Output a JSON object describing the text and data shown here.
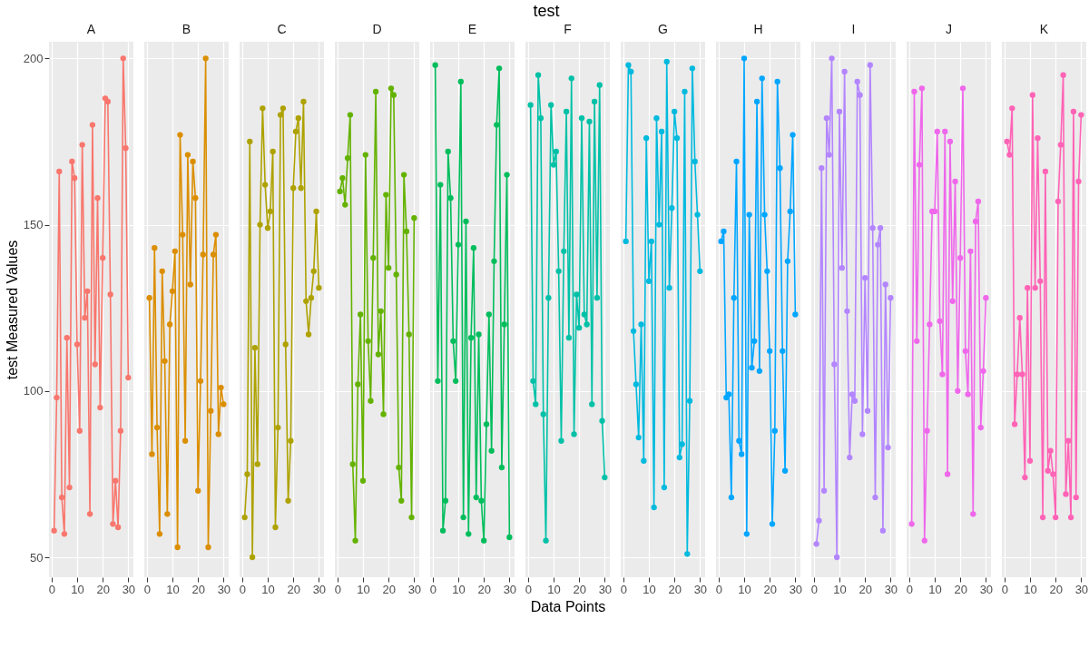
{
  "chart_data": [
    {
      "type": "line",
      "title": "A",
      "ylabel": "test Measured Values",
      "marker": "circle",
      "grid": true,
      "xlim": [
        -1,
        32
      ],
      "ylim": [
        44,
        205
      ],
      "xticks": [
        0,
        10,
        20,
        30
      ],
      "yticks": [
        50,
        100,
        150,
        200
      ],
      "x": [
        1,
        2,
        3,
        4,
        5,
        6,
        7,
        8,
        9,
        10,
        11,
        12,
        13,
        14,
        15,
        16,
        17,
        18,
        19,
        20,
        21,
        22,
        23,
        24,
        25,
        26,
        27,
        28,
        29,
        30
      ],
      "series": [
        {
          "color": "#f8766d",
          "values": [
            58,
            98,
            166,
            68,
            57,
            116,
            71,
            169,
            164,
            114,
            88,
            174,
            122,
            130,
            63,
            180,
            108,
            158,
            95,
            140,
            188,
            187,
            129,
            60,
            73,
            59,
            88,
            200,
            173,
            104
          ]
        }
      ]
    },
    {
      "type": "line",
      "title": "B",
      "tick_labels": "x",
      "marker": "circle",
      "grid": true,
      "xlim": [
        -1,
        32
      ],
      "ylim": [
        44,
        205
      ],
      "xticks": [
        0,
        10,
        20,
        30
      ],
      "yticks": [
        50,
        100,
        150,
        200
      ],
      "x": [
        1,
        2,
        3,
        4,
        5,
        6,
        7,
        8,
        9,
        10,
        11,
        12,
        13,
        14,
        15,
        16,
        17,
        18,
        19,
        20,
        21,
        22,
        23,
        24,
        25,
        26,
        27,
        28,
        29,
        30
      ],
      "series": [
        {
          "color": "#db8e00",
          "values": [
            128,
            81,
            143,
            89,
            57,
            136,
            109,
            63,
            120,
            130,
            142,
            53,
            177,
            147,
            85,
            171,
            132,
            169,
            158,
            70,
            103,
            141,
            200,
            53,
            94,
            141,
            147,
            87,
            101,
            96
          ]
        }
      ]
    },
    {
      "type": "line",
      "title": "C",
      "tick_labels": "x",
      "marker": "circle",
      "grid": true,
      "xlim": [
        -1,
        32
      ],
      "ylim": [
        44,
        205
      ],
      "xticks": [
        0,
        10,
        20,
        30
      ],
      "yticks": [
        50,
        100,
        150,
        200
      ],
      "x": [
        1,
        2,
        3,
        4,
        5,
        6,
        7,
        8,
        9,
        10,
        11,
        12,
        13,
        14,
        15,
        16,
        17,
        18,
        19,
        20,
        21,
        22,
        23,
        24,
        25,
        26,
        27,
        28,
        29,
        30
      ],
      "series": [
        {
          "color": "#aea200",
          "values": [
            62,
            75,
            175,
            50,
            113,
            78,
            150,
            185,
            162,
            149,
            154,
            172,
            59,
            89,
            183,
            185,
            114,
            67,
            85,
            161,
            178,
            182,
            161,
            187,
            127,
            117,
            128,
            136,
            154,
            131
          ]
        }
      ]
    },
    {
      "type": "line",
      "title": "D",
      "tick_labels": "x",
      "marker": "circle",
      "grid": true,
      "xlim": [
        -1,
        32
      ],
      "ylim": [
        44,
        205
      ],
      "xticks": [
        0,
        10,
        20,
        30
      ],
      "yticks": [
        50,
        100,
        150,
        200
      ],
      "x": [
        1,
        2,
        3,
        4,
        5,
        6,
        7,
        8,
        9,
        10,
        11,
        12,
        13,
        14,
        15,
        16,
        17,
        18,
        19,
        20,
        21,
        22,
        23,
        24,
        25,
        26,
        27,
        28,
        29,
        30
      ],
      "series": [
        {
          "color": "#64b200",
          "values": [
            160,
            164,
            156,
            170,
            183,
            78,
            55,
            102,
            123,
            73,
            171,
            115,
            97,
            140,
            190,
            111,
            124,
            93,
            159,
            137,
            191,
            189,
            135,
            77,
            67,
            165,
            148,
            117,
            62,
            152
          ]
        }
      ]
    },
    {
      "type": "line",
      "title": "E",
      "tick_labels": "x",
      "marker": "circle",
      "grid": true,
      "xlim": [
        -1,
        32
      ],
      "ylim": [
        44,
        205
      ],
      "xticks": [
        0,
        10,
        20,
        30
      ],
      "yticks": [
        50,
        100,
        150,
        200
      ],
      "x": [
        1,
        2,
        3,
        4,
        5,
        6,
        7,
        8,
        9,
        10,
        11,
        12,
        13,
        14,
        15,
        16,
        17,
        18,
        19,
        20,
        21,
        22,
        23,
        24,
        25,
        26,
        27,
        28,
        29,
        30
      ],
      "series": [
        {
          "color": "#00bd5c",
          "values": [
            198,
            103,
            162,
            58,
            67,
            172,
            158,
            115,
            103,
            144,
            193,
            62,
            151,
            57,
            116,
            143,
            68,
            117,
            67,
            55,
            90,
            123,
            82,
            139,
            180,
            197,
            77,
            120,
            165,
            56
          ]
        }
      ]
    },
    {
      "type": "line",
      "title": "F",
      "xlabel": "Data Points",
      "annotations": [
        "test"
      ],
      "tick_labels": "x",
      "marker": "circle",
      "grid": true,
      "xlim": [
        -1,
        32
      ],
      "ylim": [
        44,
        205
      ],
      "xticks": [
        0,
        10,
        20,
        30
      ],
      "yticks": [
        50,
        100,
        150,
        200
      ],
      "x": [
        1,
        2,
        3,
        4,
        5,
        6,
        7,
        8,
        9,
        10,
        11,
        12,
        13,
        14,
        15,
        16,
        17,
        18,
        19,
        20,
        21,
        22,
        23,
        24,
        25,
        26,
        27,
        28,
        29,
        30
      ],
      "series": [
        {
          "color": "#00c1a7",
          "values": [
            186,
            103,
            96,
            195,
            182,
            93,
            55,
            128,
            186,
            168,
            172,
            136,
            85,
            142,
            184,
            116,
            194,
            87,
            129,
            119,
            182,
            123,
            120,
            181,
            96,
            187,
            128,
            192,
            91,
            74
          ]
        }
      ]
    },
    {
      "type": "line",
      "title": "G",
      "tick_labels": "x",
      "marker": "circle",
      "grid": true,
      "xlim": [
        -1,
        32
      ],
      "ylim": [
        44,
        205
      ],
      "xticks": [
        0,
        10,
        20,
        30
      ],
      "yticks": [
        50,
        100,
        150,
        200
      ],
      "x": [
        1,
        2,
        3,
        4,
        5,
        6,
        7,
        8,
        9,
        10,
        11,
        12,
        13,
        14,
        15,
        16,
        17,
        18,
        19,
        20,
        21,
        22,
        23,
        24,
        25,
        26,
        27,
        28,
        29,
        30
      ],
      "series": [
        {
          "color": "#00bade",
          "values": [
            145,
            198,
            196,
            118,
            102,
            86,
            120,
            79,
            176,
            133,
            145,
            65,
            182,
            150,
            178,
            71,
            199,
            131,
            155,
            184,
            176,
            80,
            84,
            190,
            51,
            97,
            197,
            169,
            153,
            136
          ]
        }
      ]
    },
    {
      "type": "line",
      "title": "H",
      "tick_labels": "x",
      "marker": "circle",
      "grid": true,
      "xlim": [
        -1,
        32
      ],
      "ylim": [
        44,
        205
      ],
      "xticks": [
        0,
        10,
        20,
        30
      ],
      "yticks": [
        50,
        100,
        150,
        200
      ],
      "x": [
        1,
        2,
        3,
        4,
        5,
        6,
        7,
        8,
        9,
        10,
        11,
        12,
        13,
        14,
        15,
        16,
        17,
        18,
        19,
        20,
        21,
        22,
        23,
        24,
        25,
        26,
        27,
        28,
        29,
        30
      ],
      "series": [
        {
          "color": "#00a6ff",
          "values": [
            145,
            148,
            98,
            99,
            68,
            128,
            169,
            85,
            81,
            200,
            57,
            153,
            107,
            115,
            187,
            106,
            194,
            153,
            136,
            112,
            60,
            88,
            193,
            167,
            112,
            76,
            139,
            154,
            177,
            123
          ]
        }
      ]
    },
    {
      "type": "line",
      "title": "I",
      "tick_labels": "x",
      "marker": "circle",
      "grid": true,
      "xlim": [
        -1,
        32
      ],
      "ylim": [
        44,
        205
      ],
      "xticks": [
        0,
        10,
        20,
        30
      ],
      "yticks": [
        50,
        100,
        150,
        200
      ],
      "x": [
        1,
        2,
        3,
        4,
        5,
        6,
        7,
        8,
        9,
        10,
        11,
        12,
        13,
        14,
        15,
        16,
        17,
        18,
        19,
        20,
        21,
        22,
        23,
        24,
        25,
        26,
        27,
        28,
        29,
        30
      ],
      "series": [
        {
          "color": "#b385ff",
          "values": [
            54,
            61,
            167,
            70,
            182,
            171,
            200,
            108,
            50,
            184,
            137,
            196,
            124,
            80,
            99,
            97,
            193,
            189,
            87,
            134,
            94,
            198,
            149,
            68,
            144,
            149,
            58,
            132,
            83,
            128
          ]
        }
      ]
    },
    {
      "type": "line",
      "title": "J",
      "tick_labels": "x",
      "marker": "circle",
      "grid": true,
      "xlim": [
        -1,
        32
      ],
      "ylim": [
        44,
        205
      ],
      "xticks": [
        0,
        10,
        20,
        30
      ],
      "yticks": [
        50,
        100,
        150,
        200
      ],
      "x": [
        1,
        2,
        3,
        4,
        5,
        6,
        7,
        8,
        9,
        10,
        11,
        12,
        13,
        14,
        15,
        16,
        17,
        18,
        19,
        20,
        21,
        22,
        23,
        24,
        25,
        26,
        27,
        28,
        29,
        30
      ],
      "series": [
        {
          "color": "#ef67eb",
          "values": [
            60,
            190,
            115,
            168,
            191,
            55,
            88,
            120,
            154,
            154,
            178,
            121,
            105,
            178,
            75,
            175,
            127,
            163,
            100,
            140,
            191,
            112,
            99,
            142,
            63,
            151,
            157,
            89,
            106,
            128
          ]
        }
      ]
    },
    {
      "type": "line",
      "title": "K",
      "tick_labels": "x",
      "marker": "circle",
      "grid": true,
      "xlim": [
        -1,
        32
      ],
      "ylim": [
        44,
        205
      ],
      "xticks": [
        0,
        10,
        20,
        30
      ],
      "yticks": [
        50,
        100,
        150,
        200
      ],
      "x": [
        1,
        2,
        3,
        4,
        5,
        6,
        7,
        8,
        9,
        10,
        11,
        12,
        13,
        14,
        15,
        16,
        17,
        18,
        19,
        20,
        21,
        22,
        23,
        24,
        25,
        26,
        27,
        28,
        29,
        30
      ],
      "series": [
        {
          "color": "#ff63b6",
          "values": [
            175,
            171,
            185,
            90,
            105,
            122,
            105,
            74,
            131,
            79,
            189,
            131,
            176,
            133,
            62,
            166,
            76,
            82,
            75,
            62,
            157,
            174,
            195,
            69,
            85,
            62,
            184,
            68,
            163,
            183
          ]
        }
      ]
    }
  ]
}
